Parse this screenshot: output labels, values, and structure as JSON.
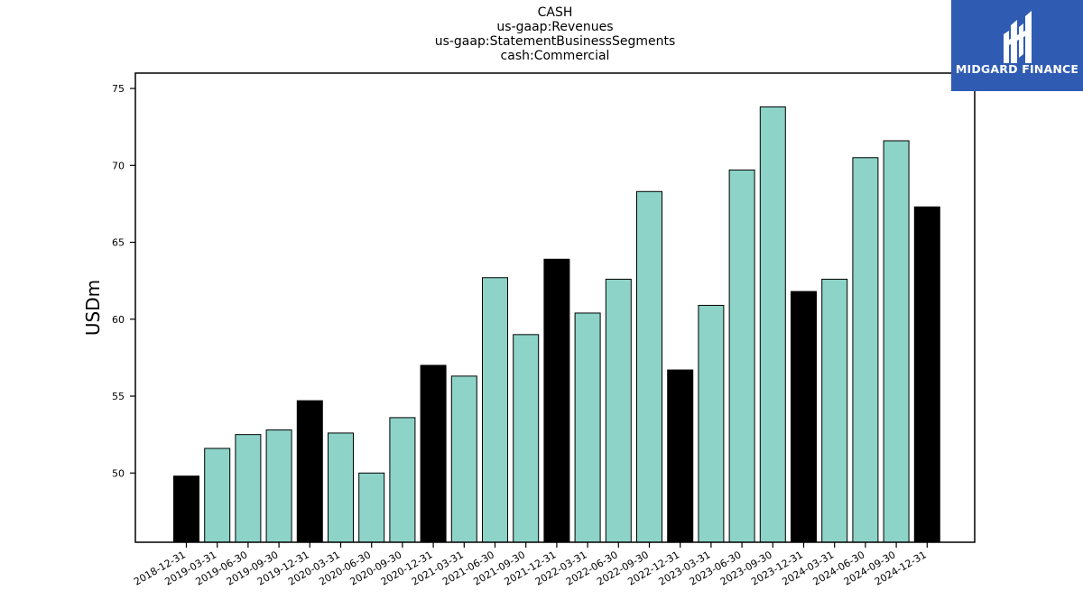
{
  "chart_data": {
    "type": "bar",
    "title_lines": [
      "CASH",
      "us-gaap:Revenues",
      "us-gaap:StatementBusinessSegments",
      "cash:Commercial"
    ],
    "ylabel": "USDm",
    "xlabel": "",
    "ylim": [
      45.5,
      76
    ],
    "yticks": [
      50,
      55,
      60,
      65,
      70,
      75
    ],
    "grid": false,
    "categories": [
      "2018-12-31",
      "2019-03-31",
      "2019-06-30",
      "2019-09-30",
      "2019-12-31",
      "2020-03-31",
      "2020-06-30",
      "2020-09-30",
      "2020-12-31",
      "2021-03-31",
      "2021-06-30",
      "2021-09-30",
      "2021-12-31",
      "2022-03-31",
      "2022-06-30",
      "2022-09-30",
      "2022-12-31",
      "2023-03-31",
      "2023-06-30",
      "2023-09-30",
      "2023-12-31",
      "2024-03-31",
      "2024-06-30",
      "2024-09-30",
      "2024-12-31"
    ],
    "values": [
      49.8,
      51.6,
      52.5,
      52.8,
      54.7,
      52.6,
      50.0,
      53.6,
      57.0,
      56.3,
      62.7,
      59.0,
      63.9,
      60.4,
      62.6,
      68.3,
      56.7,
      60.9,
      69.7,
      73.8,
      61.8,
      62.6,
      70.5,
      71.6,
      67.3
    ],
    "bar_colors": {
      "quarter": "#8dd3c7",
      "year_end": "#000000",
      "edge": "#000000"
    }
  },
  "logo": {
    "text": "MIDGARD FINANCE",
    "background": "#2f5bb3"
  }
}
